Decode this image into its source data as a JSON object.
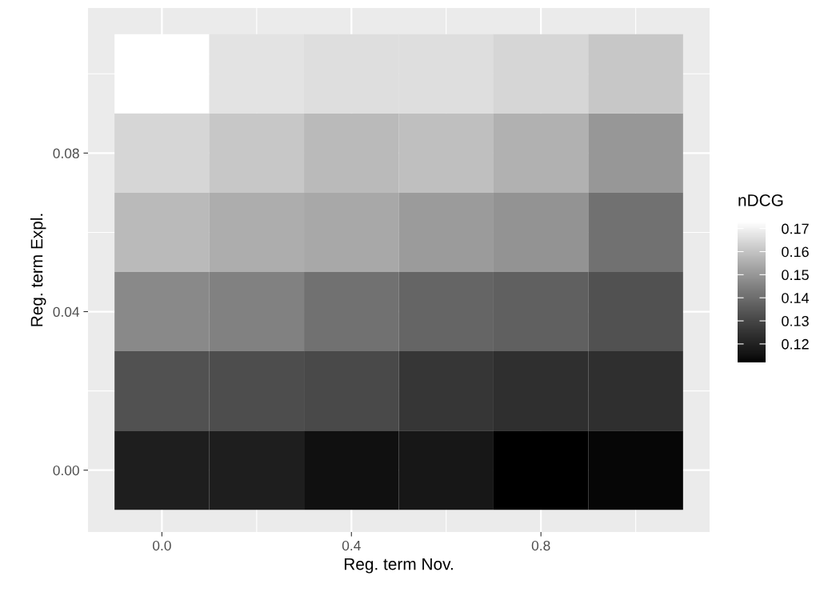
{
  "chart_data": {
    "type": "heatmap",
    "xlabel": "Reg. term Nov.",
    "ylabel": "Reg. term Expl.",
    "clabel": "nDCG",
    "categories": [
      "0.0",
      null,
      "0.4",
      null,
      "0.8",
      null
    ],
    "y_categories": [
      null,
      "0.08",
      null,
      "0.04",
      null,
      "0.00"
    ],
    "cells": [
      [
        0.173,
        0.167,
        0.166,
        0.166,
        0.164,
        0.161
      ],
      [
        0.164,
        0.161,
        0.158,
        0.159,
        0.156,
        0.15
      ],
      [
        0.158,
        0.155,
        0.154,
        0.151,
        0.149,
        0.141
      ],
      [
        0.147,
        0.145,
        0.141,
        0.138,
        0.137,
        0.133
      ],
      [
        0.133,
        0.132,
        0.131,
        0.126,
        0.124,
        0.124
      ],
      [
        0.119,
        0.119,
        0.115,
        0.117,
        0.112,
        0.113
      ]
    ],
    "clim": [
      0.112,
      0.173
    ],
    "cticks": [
      0.12,
      0.13,
      0.14,
      0.15,
      0.16,
      0.17
    ],
    "grid": true
  }
}
